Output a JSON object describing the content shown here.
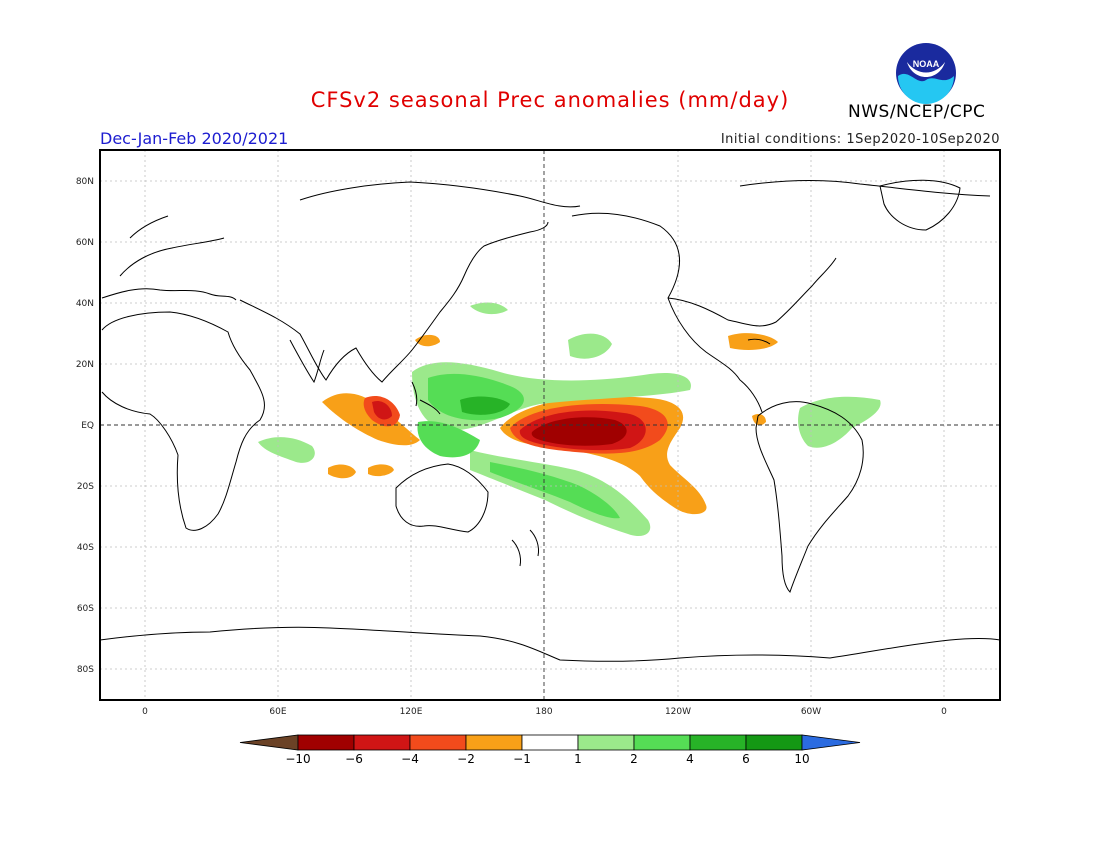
{
  "title": "CFSv2 seasonal Prec anomalies (mm/day)",
  "period": "Dec-Jan-Feb 2020/2021",
  "initial_conditions": "Initial conditions: 1Sep2020-10Sep2020",
  "agency": "NWS/NCEP/CPC",
  "logo_text": "NOAA",
  "lat_labels": [
    "80N",
    "60N",
    "40N",
    "20N",
    "EQ",
    "20S",
    "40S",
    "60S",
    "80S"
  ],
  "lon_labels": [
    "0",
    "60E",
    "120E",
    "180",
    "120W",
    "60W",
    "0"
  ],
  "colorbar": {
    "labels": [
      "-10",
      "-6",
      "-4",
      "-2",
      "-1",
      "1",
      "2",
      "4",
      "6",
      "10"
    ],
    "colors": [
      "#6b4226",
      "#a00000",
      "#d01515",
      "#f24b1c",
      "#f8a018",
      "#ffffff",
      "#9be98b",
      "#55dd55",
      "#27b327",
      "#149814",
      "#2b6be0"
    ]
  }
}
